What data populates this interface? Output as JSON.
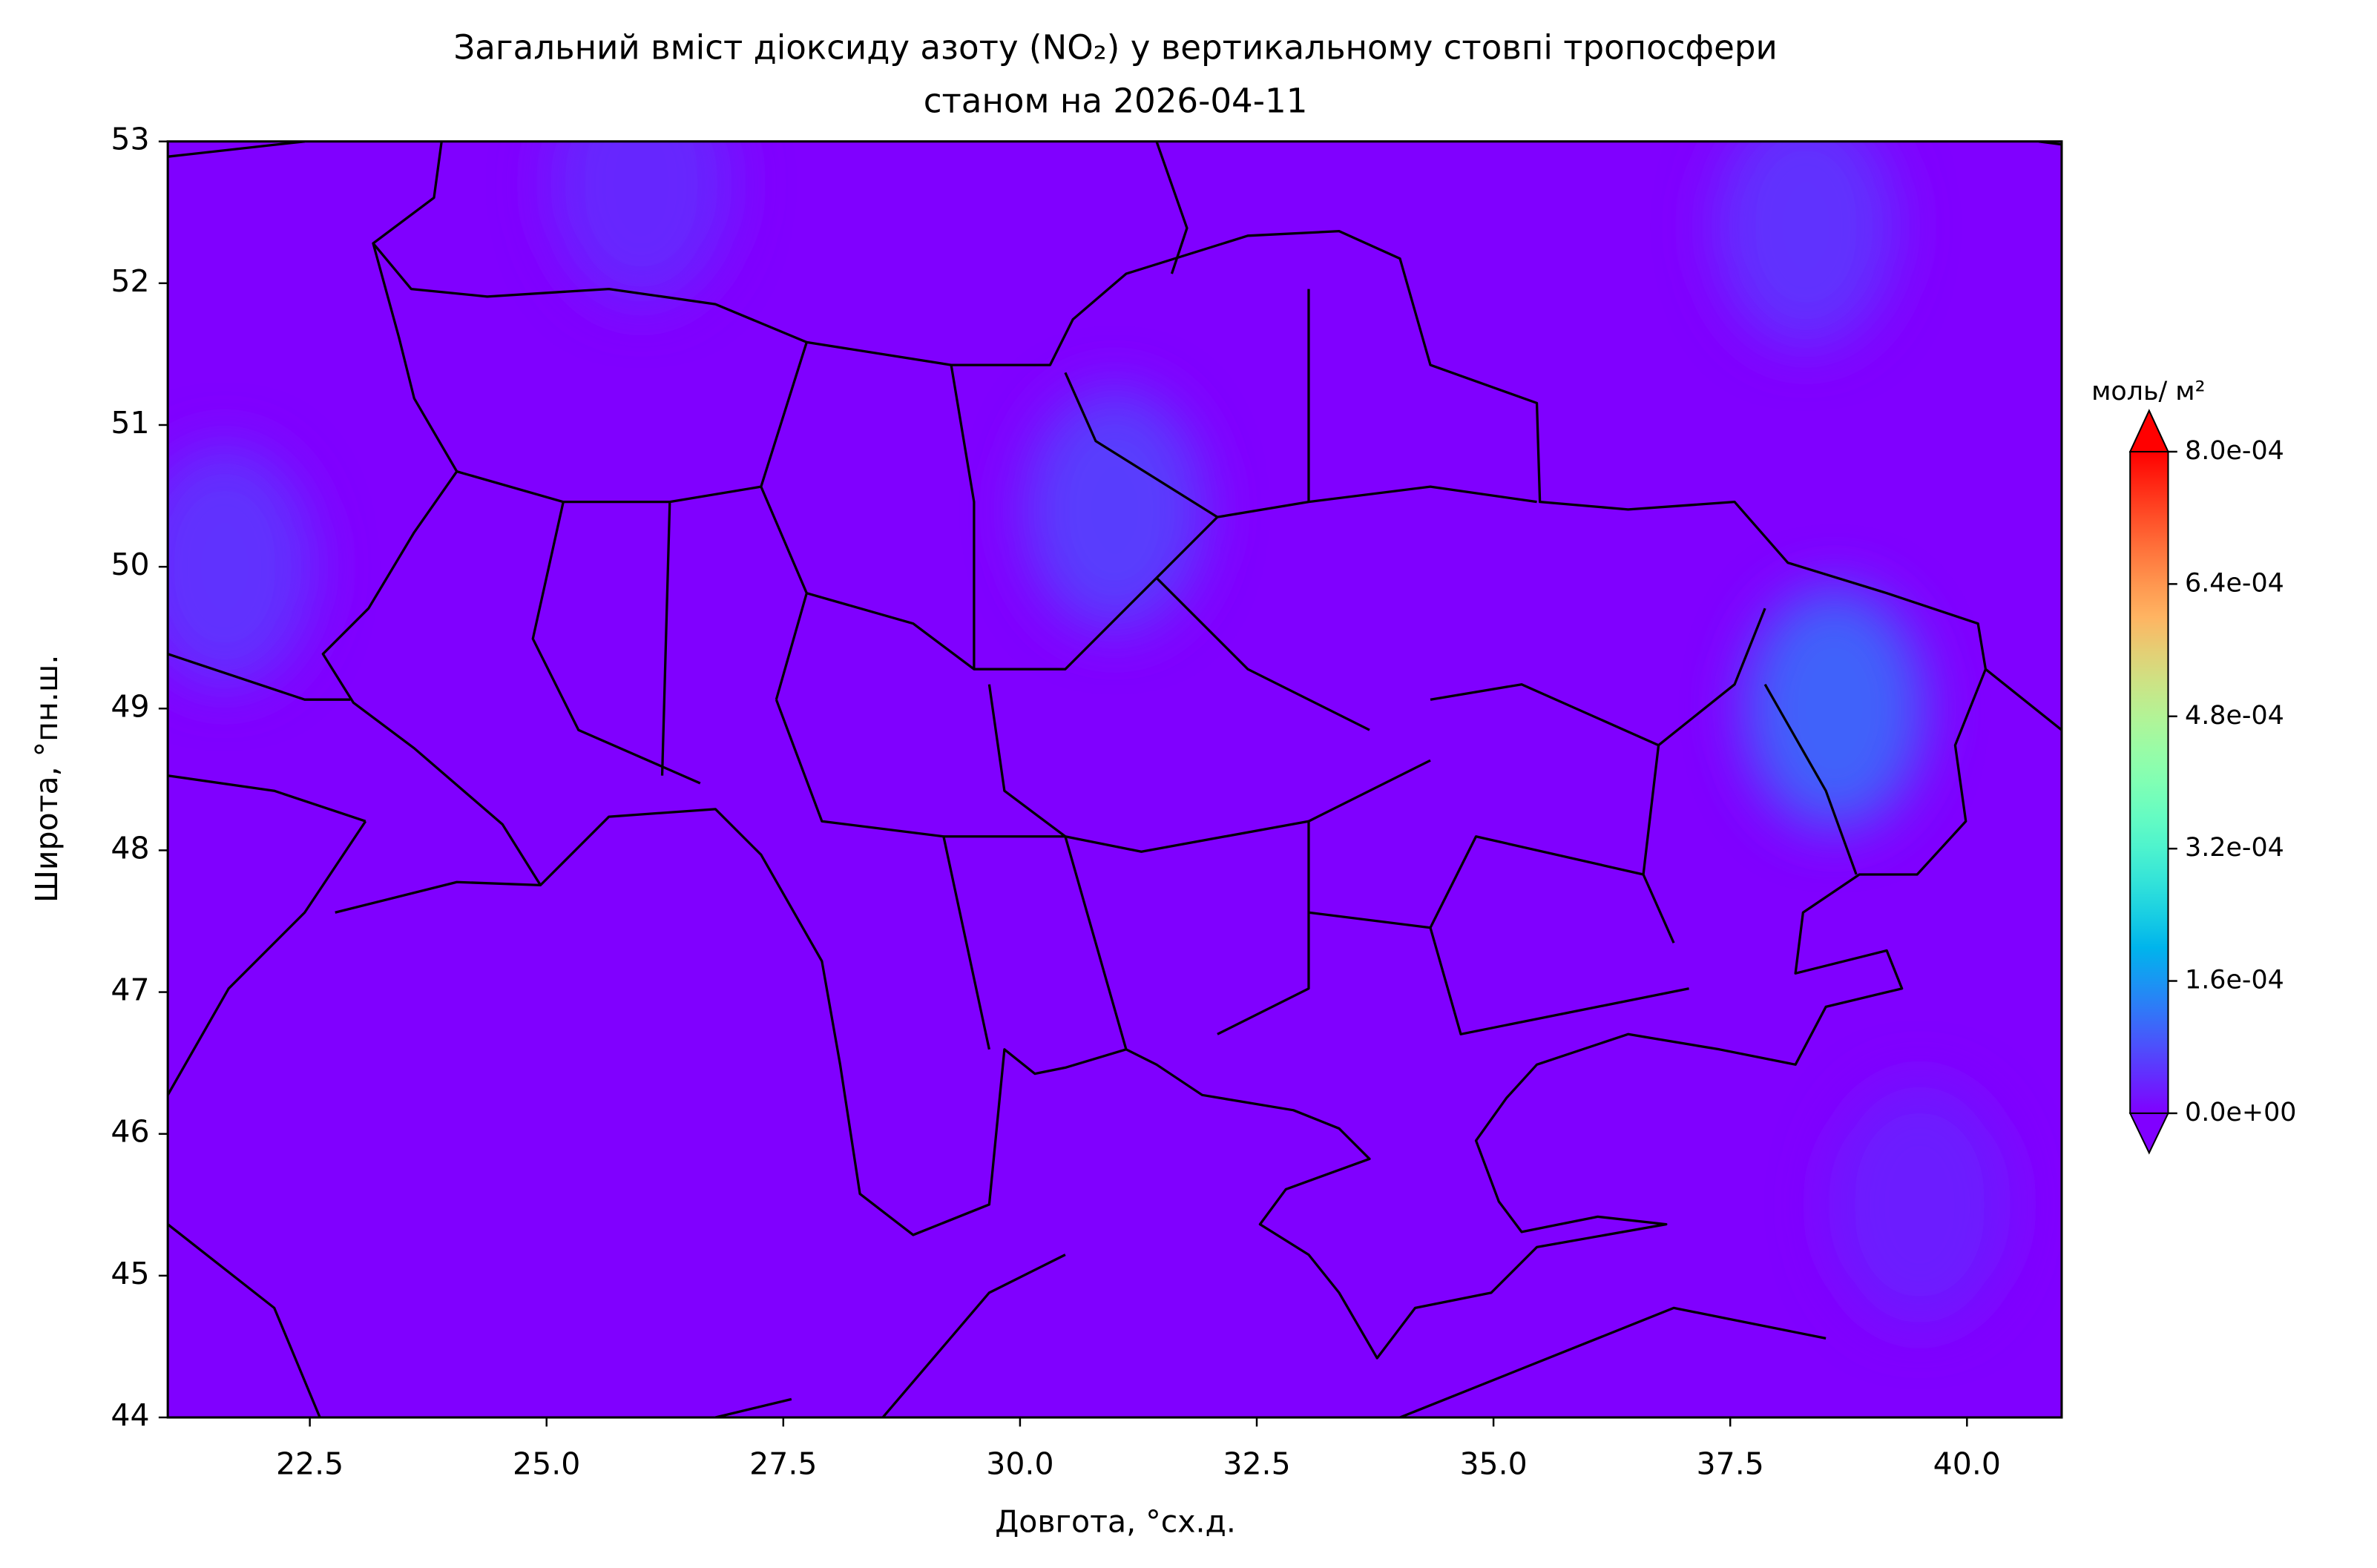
{
  "chart_data": {
    "type": "contour-map",
    "title": "Загальний вміст діоксиду азоту (NO₂) у вертикальному стовпі тропосфери",
    "subtitle": "станом на 2026-04-11",
    "xlabel": "Довгота, °сх.д.",
    "ylabel": "Широта, °пн.ш.",
    "xlim": [
      21,
      41
    ],
    "ylim": [
      44,
      53
    ],
    "xticks": [
      22.5,
      {
        "value": 25,
        "label": "25.0"
      },
      27.5,
      {
        "value": 30,
        "label": "30.0"
      },
      32.5,
      {
        "value": 35,
        "label": "35.0"
      },
      37.5,
      {
        "value": 40,
        "label": "40.0"
      }
    ],
    "yticks": [
      44,
      45,
      46,
      47,
      48,
      49,
      50,
      51,
      52,
      53
    ],
    "colorbar": {
      "label": "моль/ м²",
      "colormap": "rainbow",
      "clim": [
        0,
        0.0008
      ],
      "ticks": [
        {
          "value": 0,
          "label": "0.0e+00"
        },
        {
          "value": 0.00016,
          "label": "1.6e-04"
        },
        {
          "value": 0.00032,
          "label": "3.2e-04"
        },
        {
          "value": 0.00048,
          "label": "4.8e-04"
        },
        {
          "value": 0.00064,
          "label": "6.4e-04"
        },
        {
          "value": 0.0008,
          "label": "8.0e-04"
        }
      ]
    },
    "hotspots": {
      "lon": [
        38.6,
        31.0,
        21.6,
        38.3,
        26.0,
        39.5
      ],
      "lat": [
        49.0,
        50.4,
        50.0,
        52.4,
        52.7,
        45.5
      ],
      "values": [
        0.0001,
        6e-05,
        5e-05,
        5e-05,
        4e-05,
        3e-05
      ]
    }
  }
}
